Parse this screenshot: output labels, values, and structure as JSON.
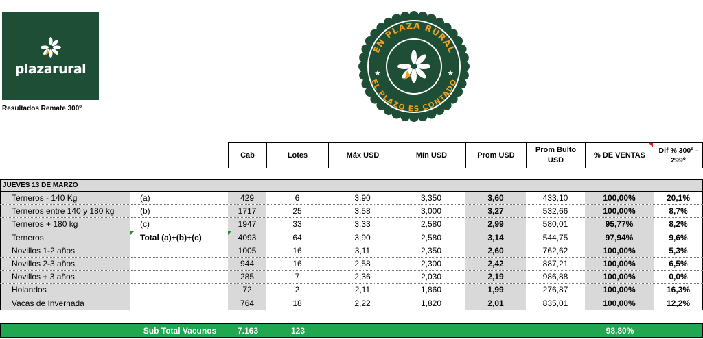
{
  "logo": {
    "text": "plazarural",
    "icon": "pinwheel-icon"
  },
  "subtitle": "Resultados Remate 300º",
  "seal": {
    "top_text": "EN PLAZA RURAL",
    "bottom_text": "EL PLAZO ES CONTADO",
    "icon": "pinwheel-icon",
    "color": "#1f4e37",
    "text_color": "#f0a020"
  },
  "headers": [
    "Cab",
    "Lotes",
    "Máx USD",
    "Mín USD",
    "Prom USD",
    "Prom Bulto USD",
    "% DE VENTAS",
    "Dif % 300º - 299º"
  ],
  "section_title": "JUEVES 13 DE MARZO",
  "rows": [
    {
      "name": "Terneros - 140 Kg",
      "tag": "(a)",
      "cab": "429",
      "lotes": "6",
      "max": "3,90",
      "min": "3,350",
      "prom": "3,60",
      "bulto": "433,10",
      "pct": "100,00%",
      "dif": "20,1%"
    },
    {
      "name": "Terneros entre 140 y 180 kg",
      "tag": "(b)",
      "cab": "1717",
      "lotes": "25",
      "max": "3,58",
      "min": "3,000",
      "prom": "3,27",
      "bulto": "532,66",
      "pct": "100,00%",
      "dif": "8,7%"
    },
    {
      "name": "Terneros + 180 kg",
      "tag": "(c)",
      "cab": "1947",
      "lotes": "33",
      "max": "3,33",
      "min": "2,580",
      "prom": "2,99",
      "bulto": "580,01",
      "pct": "95,77%",
      "dif": "8,2%"
    },
    {
      "name": "Terneros",
      "tag": "Total (a)+(b)+(c)",
      "cab": "4093",
      "lotes": "64",
      "max": "3,90",
      "min": "2,580",
      "prom": "3,14",
      "bulto": "544,75",
      "pct": "97,94%",
      "dif": "9,6%"
    },
    {
      "name": "Novillos 1-2 años",
      "tag": "",
      "cab": "1005",
      "lotes": "16",
      "max": "3,11",
      "min": "2,350",
      "prom": "2,60",
      "bulto": "762,62",
      "pct": "100,00%",
      "dif": "5,3%"
    },
    {
      "name": "Novillos 2-3 años",
      "tag": "",
      "cab": "944",
      "lotes": "16",
      "max": "2,58",
      "min": "2,300",
      "prom": "2,42",
      "bulto": "887,21",
      "pct": "100,00%",
      "dif": "6,5%"
    },
    {
      "name": "Novillos + 3 años",
      "tag": "",
      "cab": "285",
      "lotes": "7",
      "max": "2,36",
      "min": "2,030",
      "prom": "2,19",
      "bulto": "986,88",
      "pct": "100,00%",
      "dif": "0,0%"
    },
    {
      "name": "Holandos",
      "tag": "",
      "cab": "72",
      "lotes": "2",
      "max": "2,11",
      "min": "1,860",
      "prom": "1,99",
      "bulto": "276,87",
      "pct": "100,00%",
      "dif": "16,3%"
    },
    {
      "name": "Vacas de Invernada",
      "tag": "",
      "cab": "764",
      "lotes": "18",
      "max": "2,22",
      "min": "1,820",
      "prom": "2,01",
      "bulto": "835,01",
      "pct": "100,00%",
      "dif": "12,2%"
    }
  ],
  "subtotal": {
    "label": "Sub Total Vacunos",
    "cab": "7.163",
    "lotes": "123",
    "pct": "98,80%",
    "color": "#21a750"
  }
}
